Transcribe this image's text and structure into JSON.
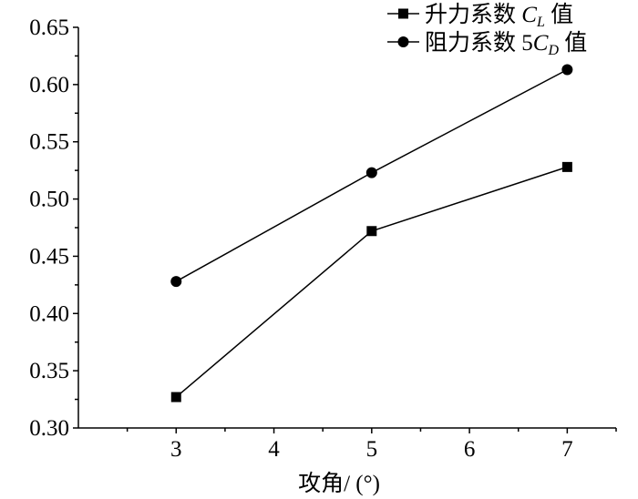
{
  "chart_data": {
    "type": "line",
    "title": "",
    "xlabel": "攻角/ (°)",
    "ylabel": "",
    "x": [
      3,
      5,
      7
    ],
    "xlim": [
      2,
      7.5
    ],
    "ylim": [
      0.3,
      0.65
    ],
    "xticks": [
      "3",
      "4",
      "5",
      "6",
      "7"
    ],
    "yticks": [
      "0.30",
      "0.35",
      "0.40",
      "0.45",
      "0.50",
      "0.55",
      "0.60",
      "0.65"
    ],
    "grid": false,
    "legend_position": "top-right",
    "series": [
      {
        "name": "升力系数 CL 值",
        "legend_prefix": "升力系数 ",
        "legend_var": "C",
        "legend_sub": "L",
        "legend_suffix": " 值",
        "marker": "square",
        "values": [
          0.327,
          0.472,
          0.528
        ]
      },
      {
        "name": "阻力系数 5CD 值",
        "legend_prefix": "阻力系数 5",
        "legend_var": "C",
        "legend_sub": "D",
        "legend_suffix": " 值",
        "marker": "circle",
        "values": [
          0.428,
          0.523,
          0.613
        ]
      }
    ]
  }
}
